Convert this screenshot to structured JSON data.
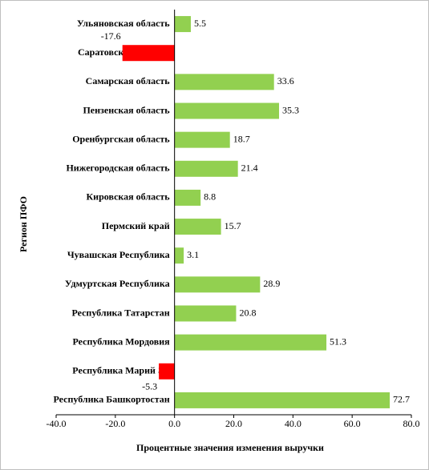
{
  "chart_data": {
    "type": "barh",
    "x_label": "Процентные значения изменения выручки",
    "y_label": "Регион ПФО",
    "categories": [
      "Ульяновская область",
      "Саратовская область",
      "Самарская область",
      "Пензенская область",
      "Оренбургская область",
      "Нижегородская область",
      "Кировская область",
      "Пермский край",
      "Чувашская Республика",
      "Удмуртская Республика",
      "Республика Татарстан",
      "Республика Мордовия",
      "Республика Марий Эл",
      "Республика Башкортостан"
    ],
    "values": [
      5.5,
      -17.6,
      33.6,
      35.3,
      18.7,
      21.4,
      8.8,
      15.7,
      3.1,
      28.9,
      20.8,
      51.3,
      -5.3,
      72.7
    ],
    "color": "#92d050",
    "negative_color": "#ff0000",
    "xlim": [
      -40,
      80
    ],
    "xticks": [
      {
        "value": -40,
        "label": "-40.0"
      },
      {
        "value": -20,
        "label": "-20.0"
      },
      {
        "value": 0,
        "label": "0.0"
      },
      {
        "value": 20,
        "label": "20.0"
      },
      {
        "value": 40,
        "label": "40.0"
      },
      {
        "value": 60,
        "label": "60.0"
      },
      {
        "value": 80,
        "label": "80.0"
      }
    ]
  }
}
